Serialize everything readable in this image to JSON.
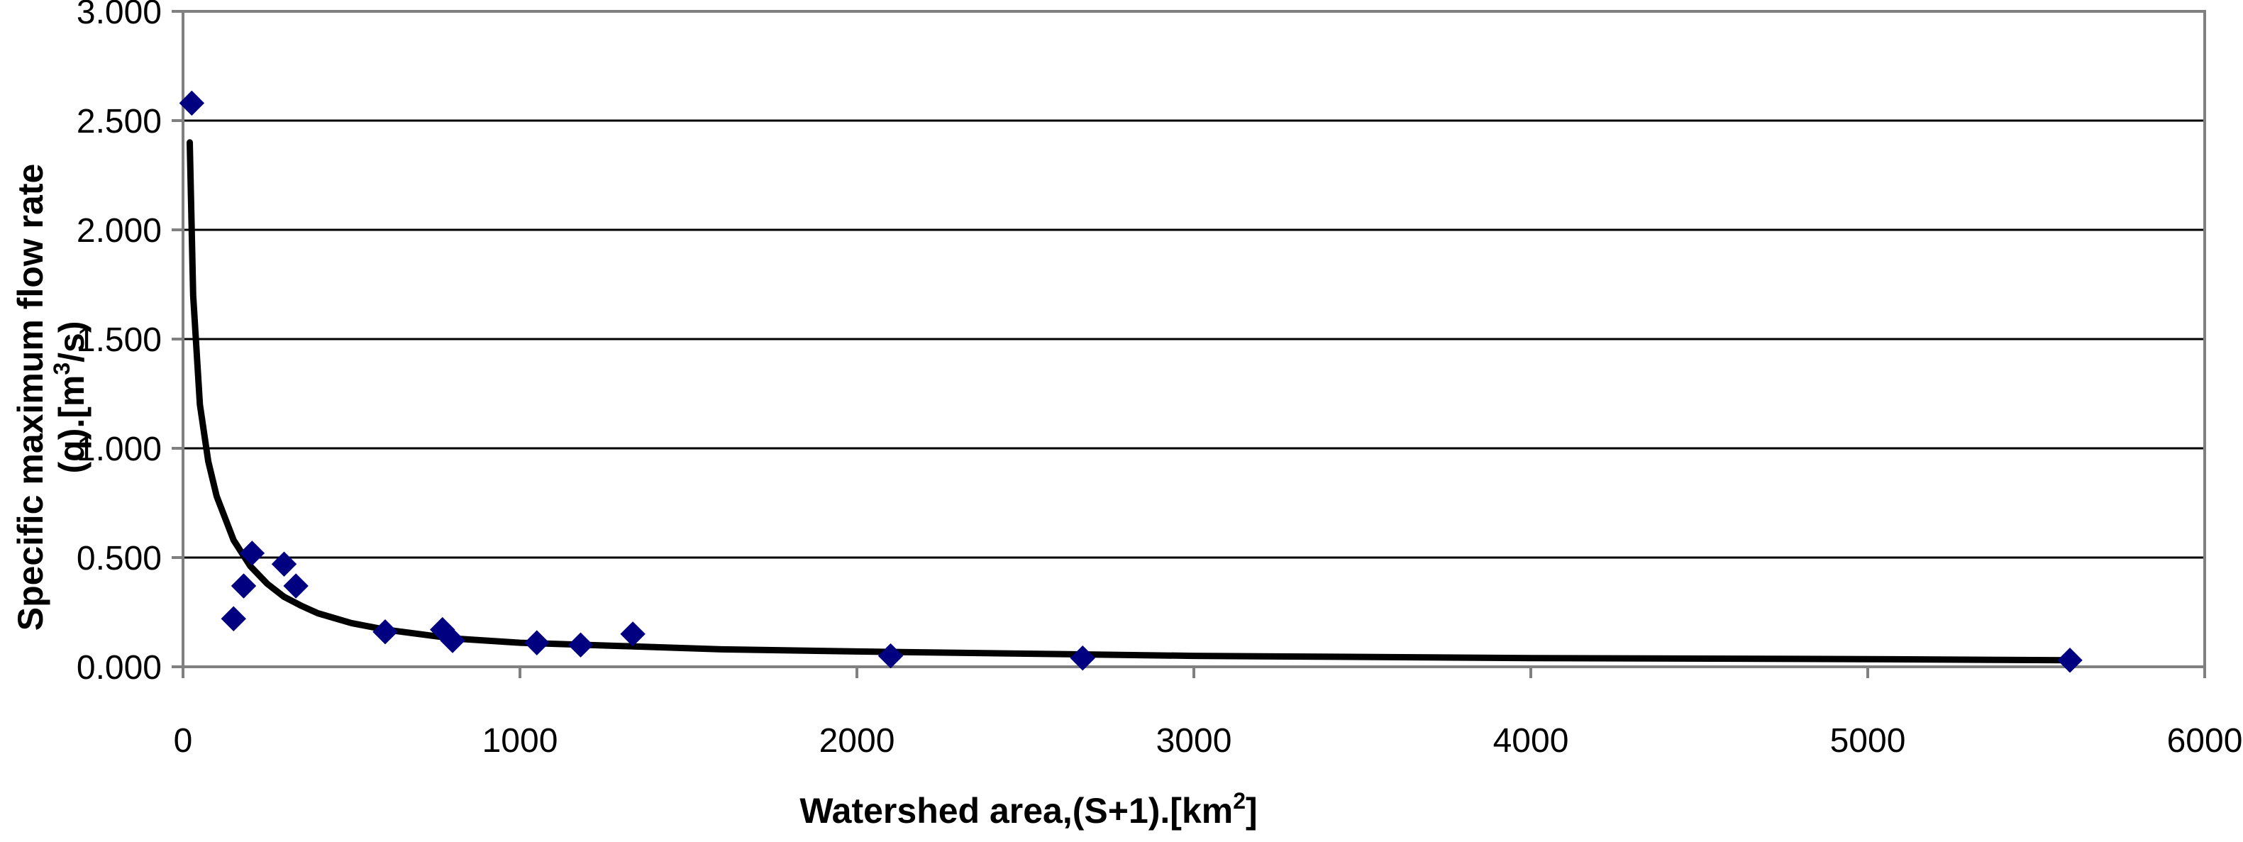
{
  "chart_data": {
    "type": "scatter",
    "title": "",
    "xlabel_parts": {
      "prefix": "Watershed area,(S+1).[km",
      "sup": "2",
      "suffix": "]"
    },
    "ylabel_line1": "Specific maximum flow rate",
    "ylabel_line2_parts": {
      "prefix": "(q).[m",
      "sup": "3",
      "suffix": "/s)"
    },
    "xlim": [
      0,
      6000
    ],
    "ylim": [
      0,
      3
    ],
    "x_ticks": [
      0,
      1000,
      2000,
      3000,
      4000,
      5000,
      6000
    ],
    "x_tick_labels": [
      "0",
      "1000",
      "2000",
      "3000",
      "4000",
      "5000",
      "6000"
    ],
    "y_ticks": [
      0,
      0.5,
      1,
      1.5,
      2,
      2.5,
      3
    ],
    "y_tick_labels": [
      "0.000",
      "0.500",
      "1.000",
      "1.500",
      "2.000",
      "2.500",
      "3.000"
    ],
    "grid": "horizontal",
    "legend": "none",
    "series": [
      {
        "kind": "points",
        "marker": "diamond",
        "color": "#000080",
        "points": [
          [
            26,
            2.58
          ],
          [
            150,
            0.22
          ],
          [
            180,
            0.37
          ],
          [
            205,
            0.52
          ],
          [
            300,
            0.47
          ],
          [
            335,
            0.37
          ],
          [
            600,
            0.16
          ],
          [
            770,
            0.17
          ],
          [
            800,
            0.12
          ],
          [
            1050,
            0.11
          ],
          [
            1180,
            0.1
          ],
          [
            1335,
            0.15
          ],
          [
            2100,
            0.05
          ],
          [
            2670,
            0.04
          ],
          [
            5600,
            0.03
          ]
        ]
      },
      {
        "kind": "trendline",
        "color": "#000000",
        "points": [
          [
            20,
            2.4
          ],
          [
            30,
            1.7
          ],
          [
            50,
            1.2
          ],
          [
            75,
            0.94
          ],
          [
            100,
            0.78
          ],
          [
            150,
            0.58
          ],
          [
            200,
            0.46
          ],
          [
            250,
            0.38
          ],
          [
            300,
            0.32
          ],
          [
            350,
            0.28
          ],
          [
            400,
            0.245
          ],
          [
            500,
            0.2
          ],
          [
            600,
            0.17
          ],
          [
            800,
            0.13
          ],
          [
            1000,
            0.11
          ],
          [
            1300,
            0.095
          ],
          [
            1600,
            0.08
          ],
          [
            2000,
            0.07
          ],
          [
            2500,
            0.06
          ],
          [
            3000,
            0.05
          ],
          [
            4000,
            0.04
          ],
          [
            5000,
            0.035
          ],
          [
            5600,
            0.03
          ]
        ]
      }
    ]
  }
}
